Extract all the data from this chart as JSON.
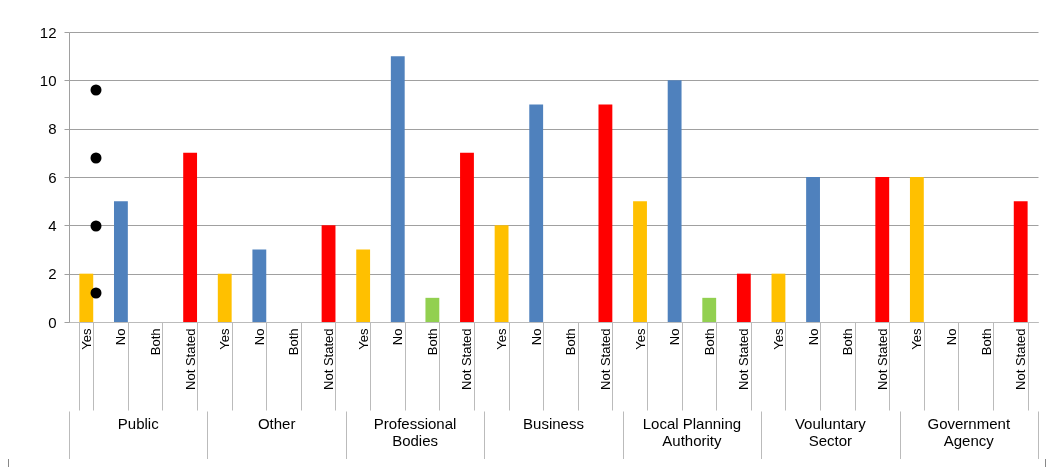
{
  "chart_data": {
    "type": "bar",
    "categories": [
      "Yes",
      "No",
      "Both",
      "Not Stated",
      "Yes",
      "No",
      "Both",
      "Not Stated",
      "Yes",
      "No",
      "Both",
      "Not Stated",
      "Yes",
      "No",
      "Both",
      "Not Stated",
      "Yes",
      "No",
      "Both",
      "Not Stated",
      "Yes",
      "No",
      "Both",
      "Not Stated",
      "Yes",
      "No",
      "Both",
      "Not Stated"
    ],
    "values": [
      2,
      5,
      0,
      7,
      2,
      3,
      0,
      4,
      3,
      11,
      1,
      7,
      4,
      9,
      0,
      9,
      5,
      10,
      1,
      2,
      2,
      6,
      0,
      6,
      6,
      0,
      0,
      5
    ],
    "colors": [
      "#ffc000",
      "#4f81bd",
      "#92d050",
      "#ff0000",
      "#ffc000",
      "#4f81bd",
      "#92d050",
      "#ff0000",
      "#ffc000",
      "#4f81bd",
      "#92d050",
      "#ff0000",
      "#ffc000",
      "#4f81bd",
      "#92d050",
      "#ff0000",
      "#ffc000",
      "#4f81bd",
      "#92d050",
      "#ff0000",
      "#ffc000",
      "#4f81bd",
      "#92d050",
      "#ff0000",
      "#ffc000",
      "#4f81bd",
      "#92d050",
      "#ff0000"
    ],
    "annotations": [
      "Public",
      "Other",
      "Professional Bodies",
      "Business",
      "Local Planning Authority",
      "Vouluntary Sector",
      "Government Agency"
    ],
    "ylim": [
      0,
      12
    ],
    "yticks": [
      0,
      2,
      4,
      6,
      8,
      10,
      12
    ],
    "grid": "y"
  }
}
